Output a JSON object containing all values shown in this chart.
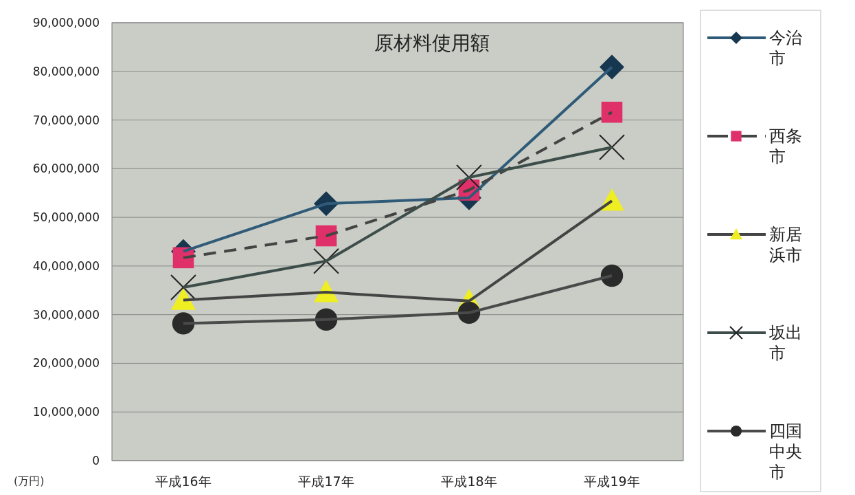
{
  "chart_data": {
    "type": "line",
    "title": "原材料使用額",
    "annotations": [
      "(万円)"
    ],
    "categories": [
      "平成16年",
      "平成17年",
      "平成18年",
      "平成19年"
    ],
    "ylim": [
      0,
      90000000
    ],
    "yticks": [
      {
        "value": 0,
        "label": "0"
      },
      {
        "value": 10000000,
        "label": "10,000,000"
      },
      {
        "value": 20000000,
        "label": "20,000,000"
      },
      {
        "value": 30000000,
        "label": "30,000,000"
      },
      {
        "value": 40000000,
        "label": "40,000,000"
      },
      {
        "value": 50000000,
        "label": "50,000,000"
      },
      {
        "value": 60000000,
        "label": "60,000,000"
      },
      {
        "value": 70000000,
        "label": "70,000,000"
      },
      {
        "value": 80000000,
        "label": "80,000,000"
      },
      {
        "value": 90000000,
        "label": "90,000,000"
      }
    ],
    "grid": "y",
    "legend": "right",
    "series": [
      {
        "name": "今治市",
        "color": "#2f5a78",
        "colors": [
          "#173650",
          "#173650",
          "#173650",
          "#173650"
        ],
        "marker": "diamond",
        "line_style": "solid",
        "values": [
          43000000,
          52800000,
          54000000,
          80900000
        ]
      },
      {
        "name": "西条市",
        "color": "#444444",
        "colors": [
          "#e0306a",
          "#e0306a",
          "#e0306a",
          "#e0306a"
        ],
        "marker": "square",
        "line_style": "dashed",
        "values": [
          41700000,
          46200000,
          55600000,
          71600000
        ]
      },
      {
        "name": "新居浜市",
        "color": "#444444",
        "colors": [
          "#eeee22",
          "#eeee22",
          "#eeee22",
          "#eeee22"
        ],
        "marker": "triangle",
        "line_style": "solid",
        "values": [
          33000000,
          34600000,
          32800000,
          53400000
        ]
      },
      {
        "name": "坂出市",
        "color": "#3d4d4a",
        "colors": [
          "#222222",
          "#222222",
          "#222222",
          "#222222"
        ],
        "marker": "cross",
        "line_style": "solid",
        "values": [
          35600000,
          41000000,
          58200000,
          64400000
        ]
      },
      {
        "name": "四国中央市",
        "color": "#4a4a4a",
        "colors": [
          "#2a2a2a",
          "#2a2a2a",
          "#2a2a2a",
          "#2a2a2a"
        ],
        "marker": "circle",
        "line_style": "solid",
        "values": [
          28200000,
          29000000,
          30400000,
          38000000
        ]
      }
    ]
  }
}
